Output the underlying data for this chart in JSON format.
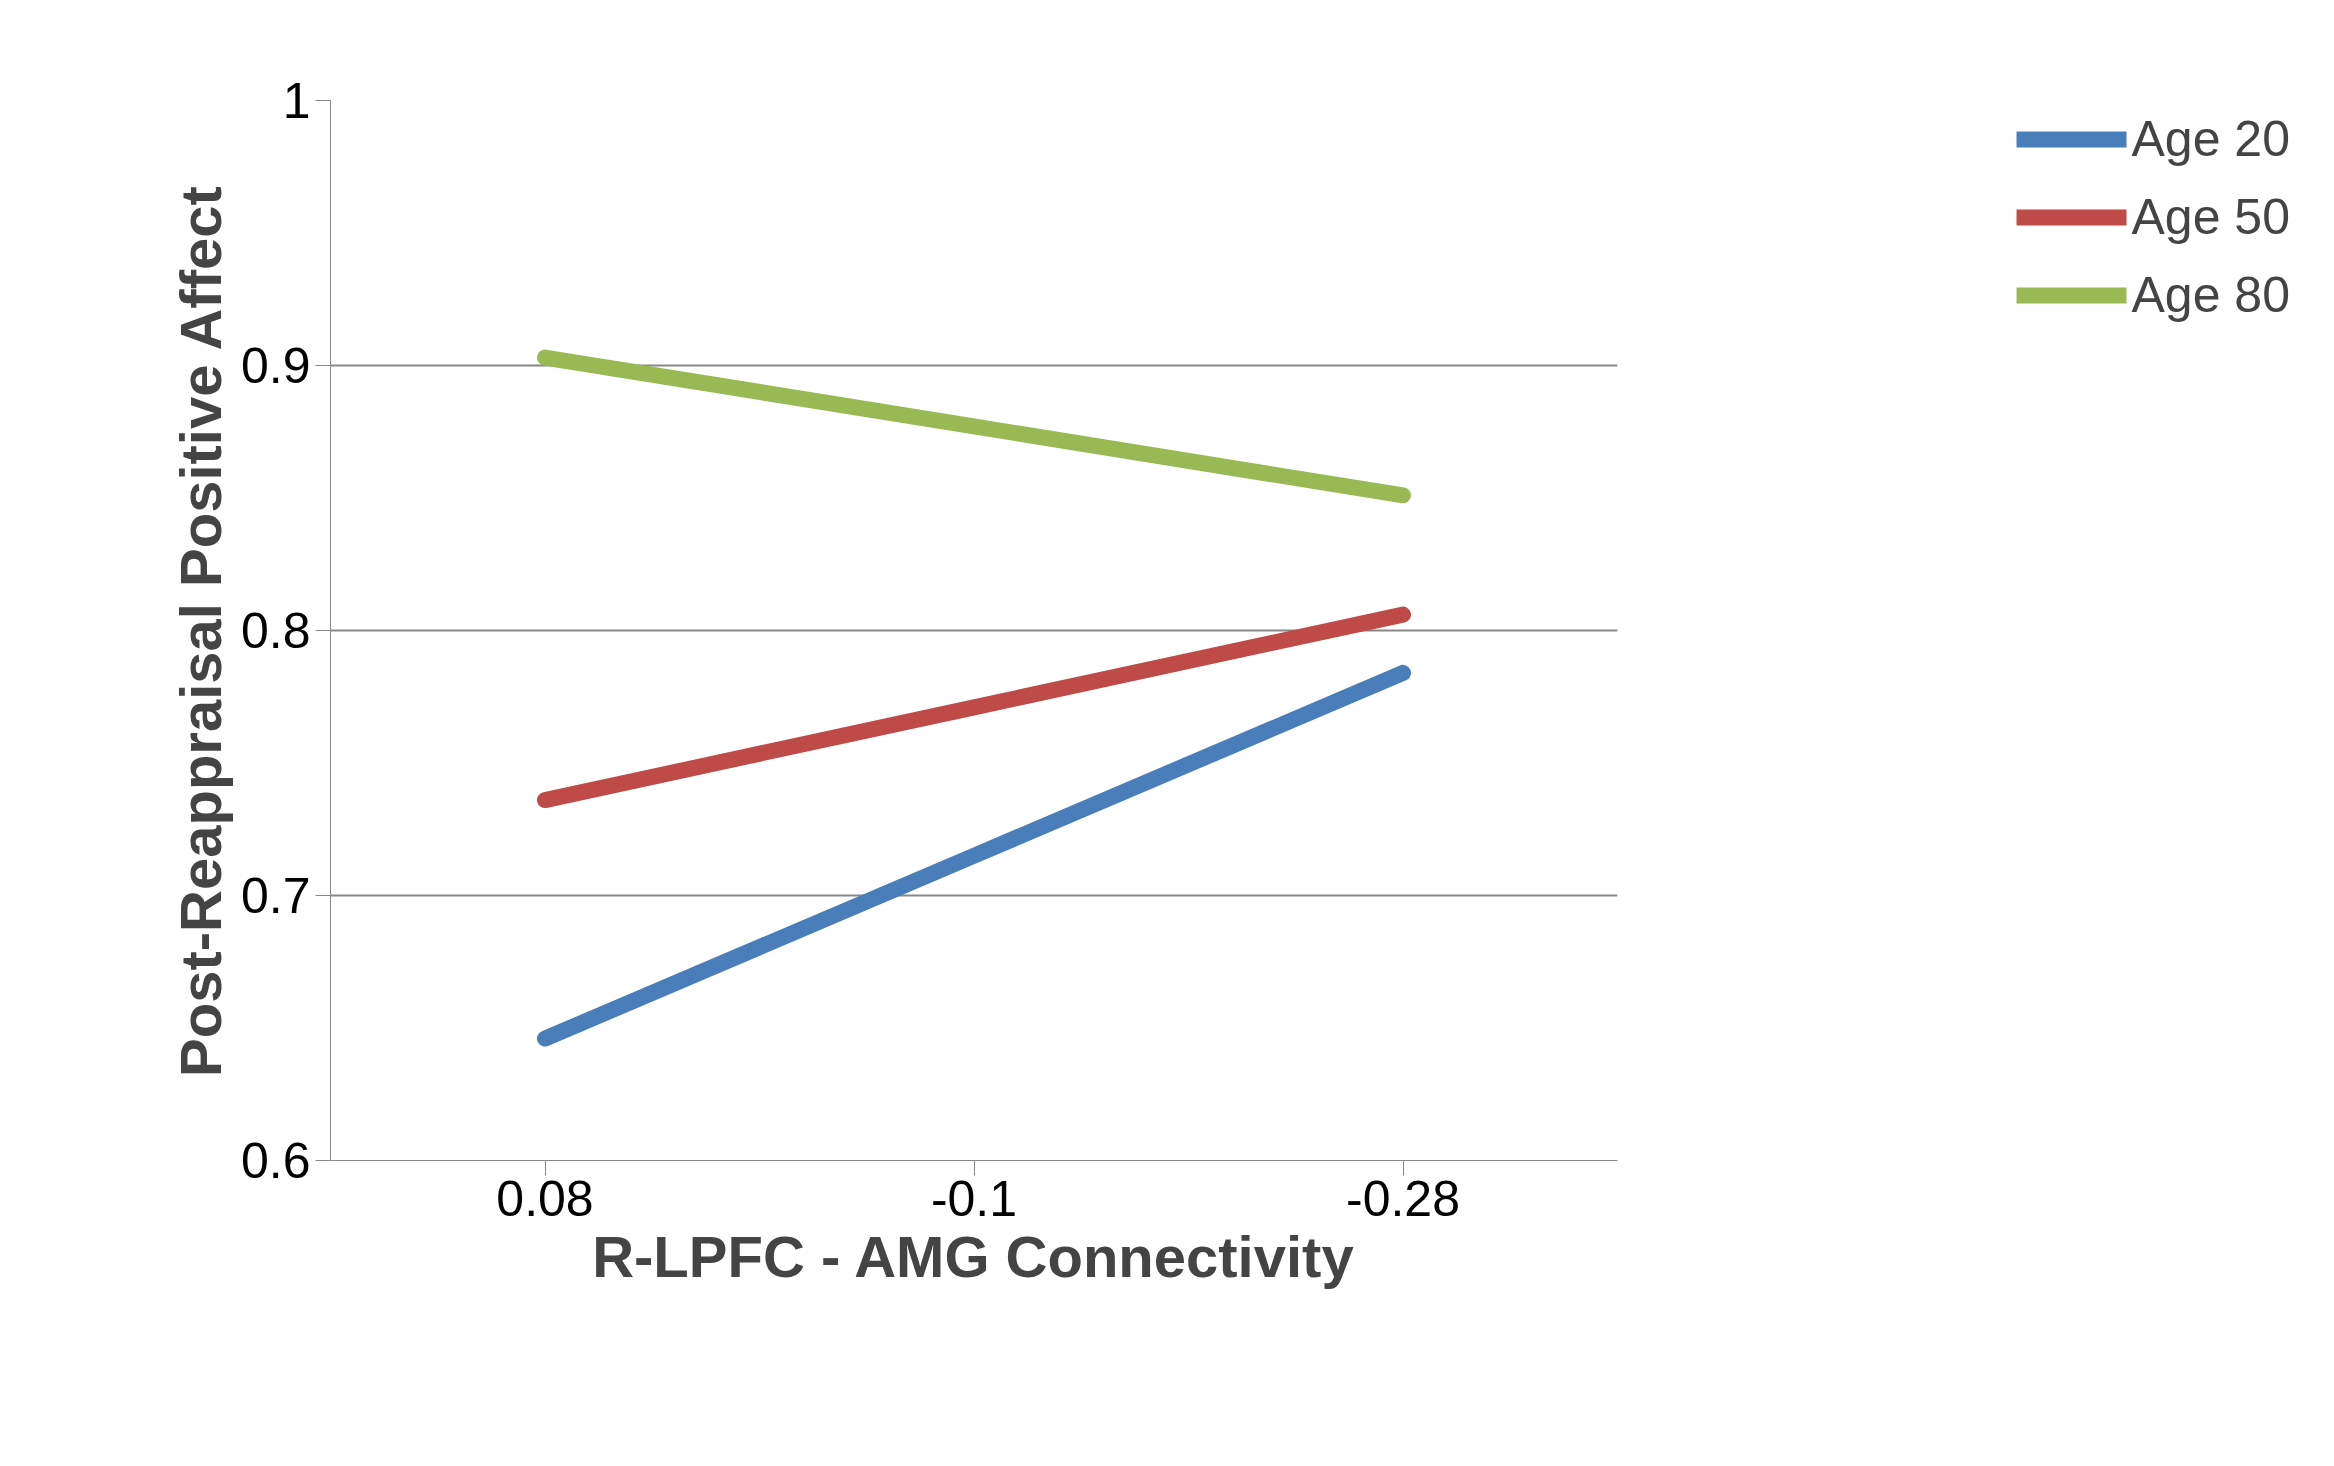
{
  "chart_data": {
    "type": "line",
    "xlabel": "R-LPFC - AMG Connectivity",
    "ylabel": "Post-Reappraisal Positive Affect",
    "categories": [
      "0.08",
      "-0.1",
      "-0.28"
    ],
    "series": [
      {
        "name": "Age 20",
        "color": "#4a7ebb",
        "values": [
          0.646,
          0.715,
          0.784
        ]
      },
      {
        "name": "Age 50",
        "color": "#be4b48",
        "values": [
          0.736,
          0.771,
          0.806
        ]
      },
      {
        "name": "Age 80",
        "color": "#98b954",
        "values": [
          0.903,
          0.877,
          0.851
        ]
      }
    ],
    "ylim": [
      0.6,
      1
    ],
    "yticks": [
      0.6,
      0.7,
      0.8,
      0.9,
      1
    ],
    "grid": "y",
    "legend": "right",
    "marker": "none",
    "line_style": "solid"
  }
}
